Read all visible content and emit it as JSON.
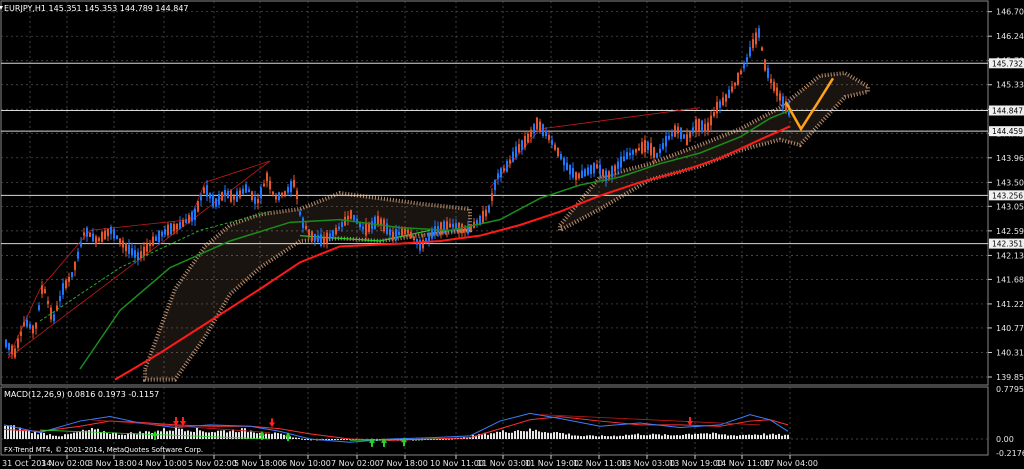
{
  "header": {
    "symbol_line": "EURJPY,H1  145.351 145.353 144.789 144.847",
    "macd_line": "MACD(12,26,9) 0.0816 0.1973 -0.1157"
  },
  "footer": {
    "copyright": "FX-Trend MT4, © 2001-2014, MetaQuotes Software Corp."
  },
  "colors": {
    "background": "#000000",
    "grid": "#5a5a5a",
    "candle_up": "#1e78ff",
    "candle_down": "#e8542a",
    "ma_fast": "#ff1a1a",
    "ma_slow": "#1a8c1a",
    "cloud": "#d9a883",
    "projection": "#ffa21a",
    "macd_signal": "#ff3030",
    "macd_main": "#3a7fff",
    "macd_hist": "#e6e6e6"
  },
  "price_axis": {
    "ticks": [
      "146.700",
      "146.240",
      "145.780",
      "145.330",
      "144.870",
      "144.420",
      "143.960",
      "143.500",
      "143.050",
      "142.590",
      "142.130",
      "141.680",
      "141.220",
      "140.770",
      "140.310",
      "139.850"
    ],
    "levels": [
      {
        "label": "145.732",
        "price": 145.732
      },
      {
        "label": "144.847",
        "price": 144.847
      },
      {
        "label": "144.459",
        "price": 144.459
      },
      {
        "label": "143.256",
        "price": 143.256
      },
      {
        "label": "142.351",
        "price": 142.351
      }
    ]
  },
  "macd_axis": {
    "ticks": [
      "0.7795",
      "0.00",
      "-0.2176"
    ]
  },
  "time_axis": {
    "labels": [
      "31 Oct 2014",
      "3 Nov 02:00",
      "3 Nov 18:00",
      "4 Nov 10:00",
      "5 Nov 02:00",
      "5 Nov 18:00",
      "6 Nov 10:00",
      "7 Nov 02:00",
      "7 Nov 18:00",
      "10 Nov 11:00",
      "11 Nov 03:00",
      "11 Nov 19:00",
      "12 Nov 11:00",
      "13 Nov 03:00",
      "13 Nov 19:00",
      "14 Nov 11:00",
      "17 Nov 04:00"
    ]
  }
}
